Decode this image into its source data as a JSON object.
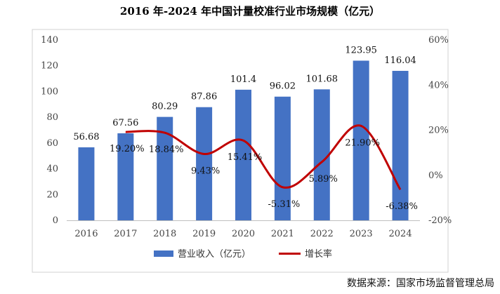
{
  "chart_data": {
    "type": "bar",
    "title": "2016 年-2024 年中国计量校准行业市场规模（亿元）",
    "categories": [
      "2016",
      "2017",
      "2018",
      "2019",
      "2020",
      "2021",
      "2022",
      "2023",
      "2024"
    ],
    "series": [
      {
        "name": "营业收入（亿元）",
        "type": "bar",
        "axis": "left",
        "color": "#4472C4",
        "values": [
          56.68,
          67.56,
          80.29,
          87.86,
          101.4,
          96.02,
          101.68,
          123.95,
          116.04
        ],
        "labels": [
          "56.68",
          "67.56",
          "80.29",
          "87.86",
          "101.4",
          "96.02",
          "101.68",
          "123.95",
          "116.04"
        ]
      },
      {
        "name": "增长率",
        "type": "line",
        "smooth": true,
        "axis": "right",
        "color": "#C00000",
        "x": [
          "2017",
          "2018",
          "2019",
          "2020",
          "2021",
          "2022",
          "2023",
          "2024"
        ],
        "values": [
          19.2,
          18.84,
          9.43,
          15.41,
          -5.31,
          5.89,
          21.9,
          -6.38
        ],
        "labels": [
          "19.20%",
          "18.84%",
          "9.43%",
          "15.41%",
          "-5.31%",
          "5.89%",
          "21.90%",
          "-6.38%"
        ]
      }
    ],
    "yleft": {
      "ylim": [
        0,
        140
      ],
      "ticks": [
        "0",
        "20",
        "40",
        "60",
        "80",
        "100",
        "120",
        "140"
      ]
    },
    "yright": {
      "ylim": [
        -20,
        60
      ],
      "ticks": [
        "-20%",
        "0%",
        "20%",
        "40%",
        "60%"
      ]
    },
    "grid": false,
    "legend": "bottom"
  },
  "source_note": "数据来源：国家市场监督管理总局"
}
